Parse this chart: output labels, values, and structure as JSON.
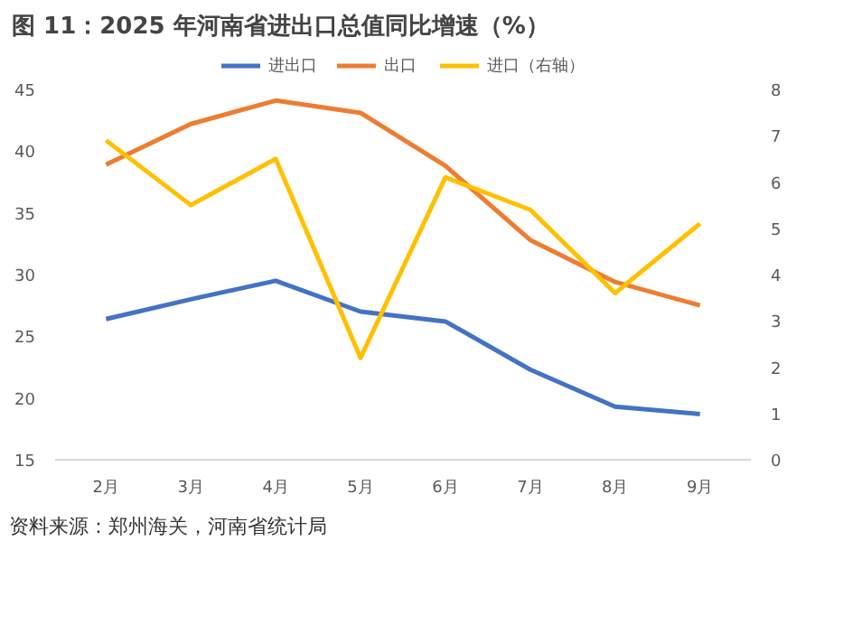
{
  "chart_data": {
    "type": "line",
    "title": "图 11：2025 年河南省进出口总值同比增速（%）",
    "categories": [
      "2月",
      "3月",
      "4月",
      "5月",
      "6月",
      "7月",
      "8月",
      "9月"
    ],
    "series": [
      {
        "name": "进出口",
        "color": "#4472c4",
        "values": [
          26.4,
          28.0,
          29.5,
          27.0,
          26.2,
          22.3,
          19.3,
          18.7
        ]
      },
      {
        "name": "出口",
        "color": "#ed7d31",
        "values": [
          38.9,
          42.2,
          44.1,
          43.1,
          38.8,
          32.8,
          29.4,
          27.5
        ]
      },
      {
        "name": "进口（右轴）",
        "color": "#ffc000",
        "axis": "y2",
        "values": [
          6.9,
          5.5,
          6.5,
          2.2,
          6.1,
          5.4,
          3.6,
          5.1
        ]
      }
    ],
    "ylim": [
      15,
      45
    ],
    "yticks": [
      15,
      20,
      25,
      30,
      35,
      40,
      45
    ],
    "y2lim": [
      0,
      8
    ],
    "y2ticks": [
      0,
      1,
      2,
      3,
      4,
      5,
      6,
      7,
      8
    ],
    "legend": "top",
    "grid": false,
    "annotations": [
      "资料来源：郑州海关，河南省统计局"
    ]
  }
}
